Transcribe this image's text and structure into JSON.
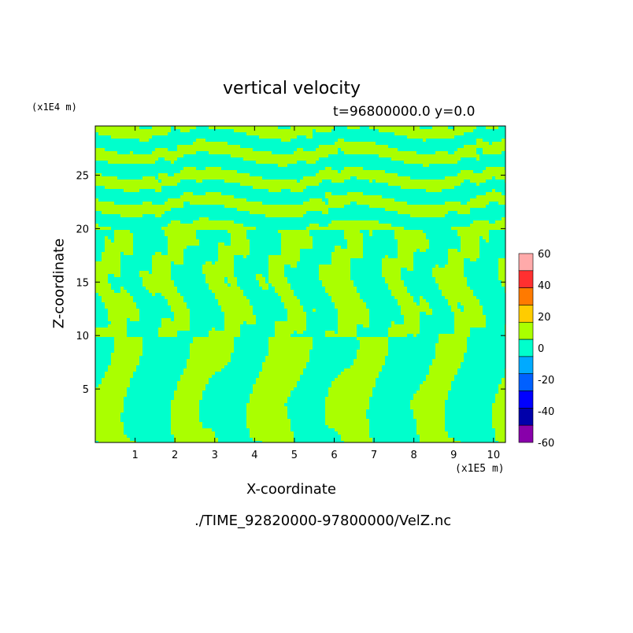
{
  "chart_data": {
    "type": "heatmap",
    "title": "vertical velocity",
    "subtitle": "t=96800000.0 y=0.0",
    "xlabel": "X-coordinate",
    "ylabel": "Z-coordinate",
    "x_unit": "(x1E5 m)",
    "y_unit": "(x1E4 m)",
    "source": "./TIME_92820000-97800000/VelZ.nc",
    "xlim": [
      0,
      10.3
    ],
    "ylim": [
      0,
      29.6
    ],
    "x_ticks": [
      "1",
      "2",
      "3",
      "4",
      "5",
      "6",
      "7",
      "8",
      "9",
      "10"
    ],
    "x_tick_values": [
      1,
      2,
      3,
      4,
      5,
      6,
      7,
      8,
      9,
      10
    ],
    "y_ticks": [
      "5",
      "10",
      "15",
      "20",
      "25"
    ],
    "y_tick_values": [
      5,
      10,
      15,
      20,
      25
    ],
    "colorbar": {
      "levels": [
        "60",
        "40",
        "20",
        "0",
        "-20",
        "-40",
        "-60"
      ],
      "level_values": [
        60,
        40,
        20,
        0,
        -20,
        -40,
        -60
      ],
      "colors": [
        "#ffaaaa",
        "#ff3030",
        "#ff7a00",
        "#ffcc00",
        "#aaff00",
        "#00ffcc",
        "#00aaff",
        "#0060ff",
        "#0000ff",
        "#0000aa",
        "#8800aa"
      ],
      "dominant_positive": "#aaff00",
      "dominant_negative": "#00ffcc"
    }
  }
}
